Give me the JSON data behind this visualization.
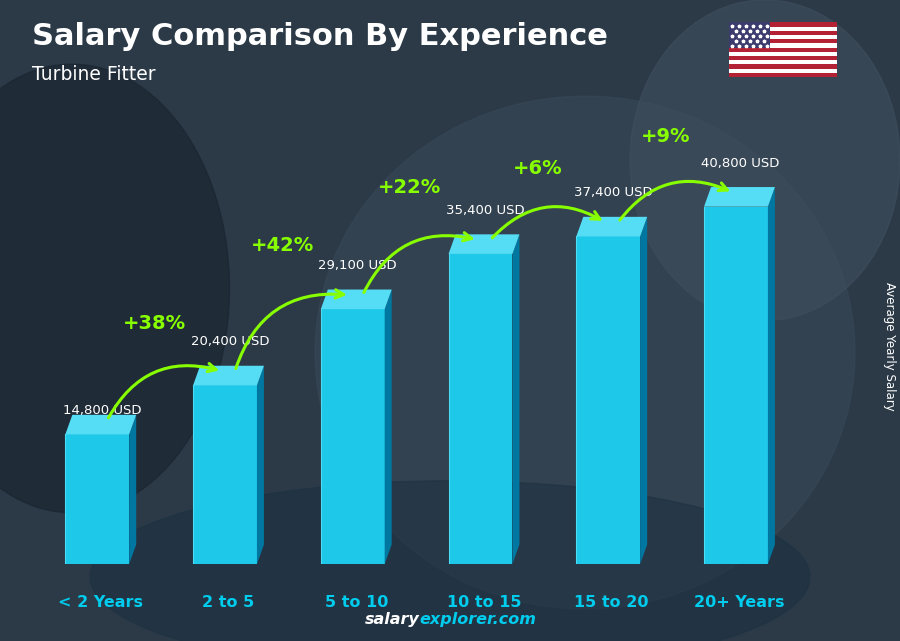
{
  "title": "Salary Comparison By Experience",
  "subtitle": "Turbine Fitter",
  "categories": [
    "< 2 Years",
    "2 to 5",
    "5 to 10",
    "10 to 15",
    "15 to 20",
    "20+ Years"
  ],
  "values": [
    14800,
    20400,
    29100,
    35400,
    37400,
    40800
  ],
  "value_labels": [
    "14,800 USD",
    "20,400 USD",
    "29,100 USD",
    "35,400 USD",
    "37,400 USD",
    "40,800 USD"
  ],
  "pct_labels": [
    "+38%",
    "+42%",
    "+22%",
    "+6%",
    "+9%"
  ],
  "bar_front": "#1ec8e8",
  "bar_side": "#0077a0",
  "bar_top": "#55ddf5",
  "bg_color": "#2b3d50",
  "title_color": "#ffffff",
  "subtitle_color": "#ffffff",
  "value_color": "#ffffff",
  "pct_color": "#88ff00",
  "arrow_color": "#88ff00",
  "cat_color": "#00ccee",
  "watermark_salary": "#ffffff",
  "watermark_explorer": "#00ccee",
  "ylabel_text": "Average Yearly Salary",
  "watermark_text_salary": "salary",
  "watermark_text_rest": "explorer.com",
  "figsize": [
    9.0,
    6.41
  ],
  "dpi": 100
}
